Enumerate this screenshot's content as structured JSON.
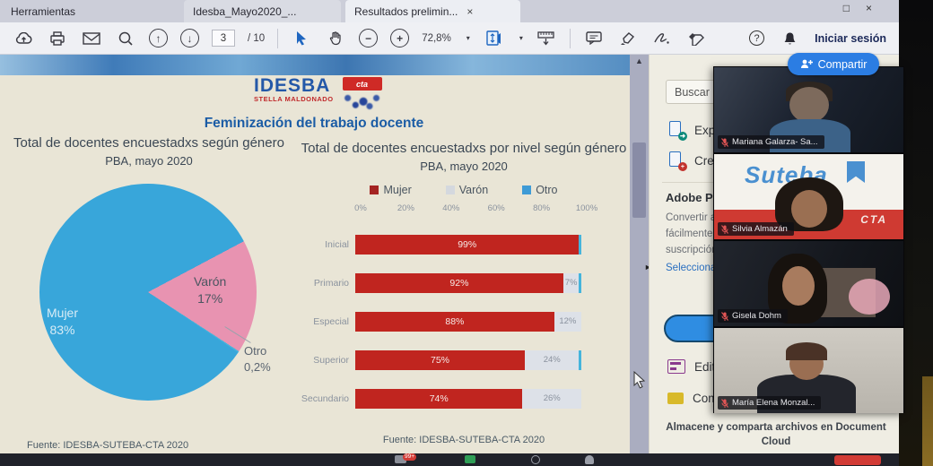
{
  "window": {
    "tabs": [
      {
        "label": "Herramientas"
      },
      {
        "label": "Idesba_Mayo2020_..."
      },
      {
        "label": "Resultados prelimin...",
        "close_glyph": "×"
      }
    ],
    "controls": {
      "maximize_glyph": "□",
      "close_glyph": "×"
    }
  },
  "toolbar": {
    "page_current": "3",
    "page_total": "/ 10",
    "zoom_level": "72,8%",
    "caret_glyph": "▾",
    "up_glyph": "↑",
    "down_glyph": "↓",
    "minus_glyph": "−",
    "plus_glyph": "+",
    "help_glyph": "?",
    "signin_label": "Iniciar sesión",
    "share_label": "Compartir"
  },
  "document": {
    "logo": {
      "line1": "IDESBA",
      "line2": "STELLA MALDONADO",
      "badge": "cta"
    },
    "title": "Feminización del trabajo docente",
    "source_left": "Fuente: IDESBA-SUTEBA-CTA 2020",
    "source_center": "Fuente: IDESBA-SUTEBA-CTA 2020"
  },
  "chart_data": [
    {
      "type": "pie",
      "title": "Total de docentes encuestadxs según género",
      "subtitle": "PBA, mayo 2020",
      "labels": [
        "Mujer",
        "Varón",
        "Otro"
      ],
      "values": [
        83,
        17,
        0.2
      ],
      "display_labels": {
        "mujer": "Mujer",
        "mujer_pct": "83%",
        "varon": "Varón",
        "varon_pct": "17%",
        "otro": "Otro",
        "otro_pct": "0,2%"
      },
      "colors": {
        "mujer": "#38a6da",
        "varon": "#e893b1",
        "otro": "#45b4dc"
      }
    },
    {
      "type": "bar",
      "orientation": "horizontal",
      "stacked": true,
      "title": "Total de docentes encuestadxs por nivel según género",
      "subtitle": "PBA, mayo 2020",
      "legend": [
        {
          "label": "Mujer",
          "color": "#a42422"
        },
        {
          "label": "Varón",
          "color": "#d4d8de"
        },
        {
          "label": "Otro",
          "color": "#3e9bd6"
        }
      ],
      "x_ticks": [
        "0%",
        "20%",
        "40%",
        "60%",
        "80%",
        "100%"
      ],
      "xlim": [
        0,
        100
      ],
      "categories": [
        "Inicial",
        "Primario",
        "Especial",
        "Superior",
        "Secundario"
      ],
      "series": [
        {
          "name": "Mujer",
          "values": [
            99,
            92,
            88,
            75,
            74
          ]
        },
        {
          "name": "Varón",
          "values": [
            0,
            7,
            12,
            24,
            26
          ]
        },
        {
          "name": "Otro",
          "values": [
            1,
            1,
            0,
            1,
            0
          ]
        }
      ],
      "rows": [
        {
          "label": "Inicial",
          "mujer": 99,
          "mujer_label": "99%",
          "varon": 0,
          "varon_label": "",
          "otro": 1
        },
        {
          "label": "Primario",
          "mujer": 92,
          "mujer_label": "92%",
          "varon": 7,
          "varon_label": "7%",
          "otro": 1
        },
        {
          "label": "Especial",
          "mujer": 88,
          "mujer_label": "88%",
          "varon": 12,
          "varon_label": "12%",
          "otro": 0
        },
        {
          "label": "Superior",
          "mujer": 75,
          "mujer_label": "75%",
          "varon": 24,
          "varon_label": "24%",
          "otro": 1
        },
        {
          "label": "Secundario",
          "mujer": 74,
          "mujer_label": "74%",
          "varon": 26,
          "varon_label": "26%",
          "otro": 0
        }
      ]
    }
  ],
  "sidebar": {
    "search_value": "Buscar 'M",
    "export_label": "Expo",
    "create_label": "Crea",
    "heading": "Adobe PDF",
    "promo_lines": [
      "Convertir arc",
      "fácilmente c",
      "suscripción d"
    ],
    "link_label": "Seleccionar a",
    "edit_label": "Edita",
    "comment_label": "Com",
    "cloud_note": "Almacene y comparta archivos en Document Cloud"
  },
  "scroll": {
    "up_glyph": "▲",
    "collapse_glyph": "►"
  },
  "video_panel": {
    "participants": [
      {
        "name": "Mariana Galarza- Sa..."
      },
      {
        "name": "Silvia Almazán",
        "overlay_logo": "Suteba",
        "overlay_badge": "CTA"
      },
      {
        "name": "Gisela Dohm"
      },
      {
        "name": "María Elena Monzal..."
      }
    ]
  },
  "taskbar": {
    "chat_badge": "99+"
  }
}
